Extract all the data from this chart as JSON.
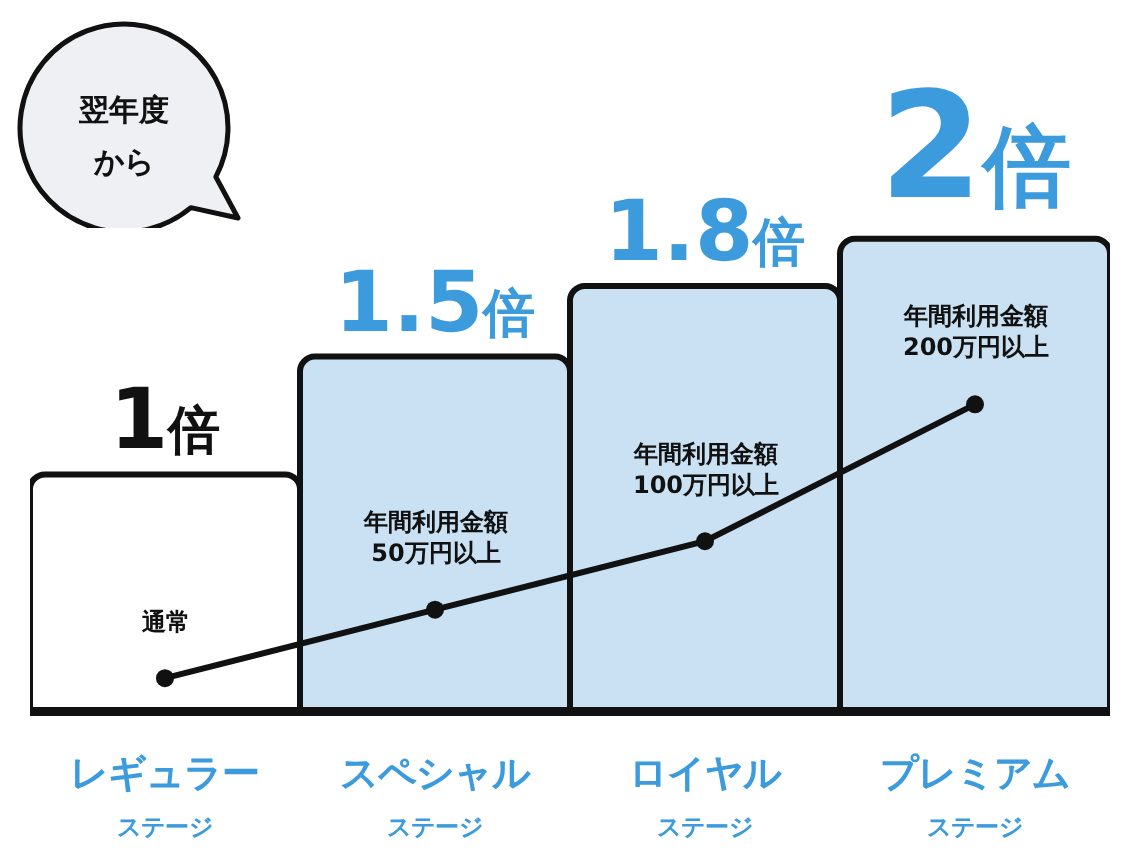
{
  "chart_data": {
    "type": "bar",
    "categories": [
      "レギュラーステージ",
      "スペシャルステージ",
      "ロイヤルステージ",
      "プレミアムステージ"
    ],
    "series": [
      {
        "values": [
          1,
          1.5,
          1.8,
          2
        ],
        "colors": [
          "#ffffff",
          "#c9e1f3",
          "#c9e1f3",
          "#c9e1f3"
        ],
        "value_labels": [
          "1倍",
          "1.5倍",
          "1.8倍",
          "2倍"
        ]
      },
      {
        "type": "line",
        "axis": "y2",
        "color": "#111111",
        "values": [
          0,
          50,
          100,
          200
        ],
        "value_labels": [
          "通常",
          "年間利用金額\n50万円以上",
          "年間利用金額\n100万円以上",
          "年間利用金額\n200万円以上"
        ]
      }
    ],
    "marker": "circle",
    "tick_labels": "x",
    "annotations": [
      "翌年度から"
    ]
  }
}
